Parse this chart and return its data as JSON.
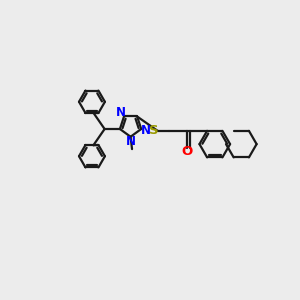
{
  "bg_color": "#ececec",
  "line_color": "#1a1a1a",
  "N_color": "#0000ff",
  "O_color": "#ff0000",
  "S_color": "#999900",
  "line_width": 1.6,
  "font_size": 8.5,
  "fig_width": 3.0,
  "fig_height": 3.0,
  "xlim": [
    0,
    10
  ],
  "ylim": [
    0,
    10
  ],
  "r_hex": 0.52,
  "r_phen": 0.44,
  "r_tri": 0.38
}
